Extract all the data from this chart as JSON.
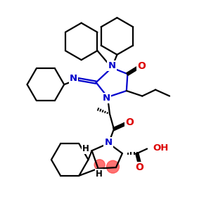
{
  "background_color": "#ffffff",
  "bond_color": "#000000",
  "N_color": "#0000cd",
  "O_color": "#dd0000",
  "highlight_color": "#ff4444",
  "line_width": 1.6,
  "figsize": [
    3.0,
    3.0
  ],
  "dpi": 100,
  "xlim": [
    0,
    10
  ],
  "ylim": [
    0,
    10
  ]
}
